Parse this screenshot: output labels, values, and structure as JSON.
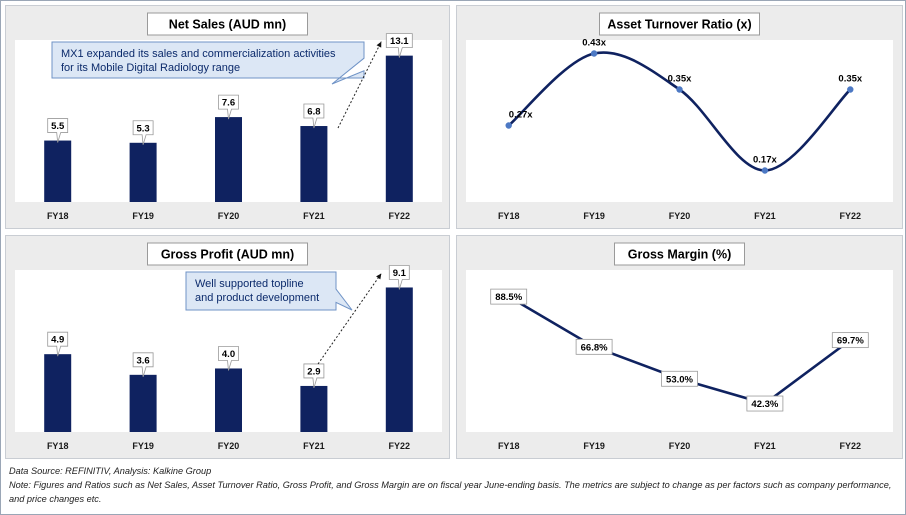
{
  "colors": {
    "bar": "#0f2260",
    "line": "#0f2260",
    "point": "#4d79c4",
    "callout_fill": "#dce7f5",
    "callout_stroke": "#6f93c6",
    "panel_bg": "#ececec",
    "plot_bg": "#ffffff"
  },
  "chart_data": [
    {
      "type": "bar",
      "title": "Net Sales (AUD mn)",
      "categories": [
        "FY18",
        "FY19",
        "FY20",
        "FY21",
        "FY22"
      ],
      "values": [
        5.5,
        5.3,
        7.6,
        6.8,
        13.1
      ],
      "labels": [
        "5.5",
        "5.3",
        "7.6",
        "6.8",
        "13.1"
      ],
      "ylim": [
        0,
        14.5
      ],
      "grid": false,
      "annotation": {
        "lines": [
          "MX1 expanded its sales and commercialization activities",
          "for its Mobile Digital Radiology range"
        ],
        "points_to": "FY22"
      }
    },
    {
      "type": "line",
      "title": "Asset Turnover Ratio (x)",
      "categories": [
        "FY18",
        "FY19",
        "FY20",
        "FY21",
        "FY22"
      ],
      "values": [
        0.27,
        0.43,
        0.35,
        0.17,
        0.35
      ],
      "labels": [
        "0.27x",
        "0.43x",
        "0.35x",
        "0.17x",
        "0.35x"
      ],
      "ylim": [
        0.1,
        0.46
      ],
      "smooth": true,
      "grid": false
    },
    {
      "type": "bar",
      "title": "Gross Profit (AUD mn)",
      "categories": [
        "FY18",
        "FY19",
        "FY20",
        "FY21",
        "FY22"
      ],
      "values": [
        4.9,
        3.6,
        4.0,
        2.9,
        9.1
      ],
      "labels": [
        "4.9",
        "3.6",
        "4.0",
        "2.9",
        "9.1"
      ],
      "ylim": [
        0,
        10.2
      ],
      "grid": false,
      "annotation": {
        "lines": [
          "Well supported topline",
          "and product development"
        ],
        "points_to": "FY22"
      }
    },
    {
      "type": "line",
      "title": "Gross Margin (%)",
      "categories": [
        "FY18",
        "FY19",
        "FY20",
        "FY21",
        "FY22"
      ],
      "values": [
        88.5,
        66.8,
        53.0,
        42.3,
        69.7
      ],
      "labels": [
        "88.5%",
        "66.8%",
        "53.0%",
        "42.3%",
        "69.7%"
      ],
      "ylim": [
        30,
        100
      ],
      "smooth": false,
      "grid": false
    }
  ],
  "notes": {
    "source": "Data Source: REFINITIV, Analysis: Kalkine Group",
    "note": "Note: Figures and Ratios such as Net Sales, Asset Turnover Ratio, Gross Profit, and Gross Margin are on fiscal year June-ending basis. The metrics are subject to change as per factors such as company performance, and price changes etc."
  }
}
